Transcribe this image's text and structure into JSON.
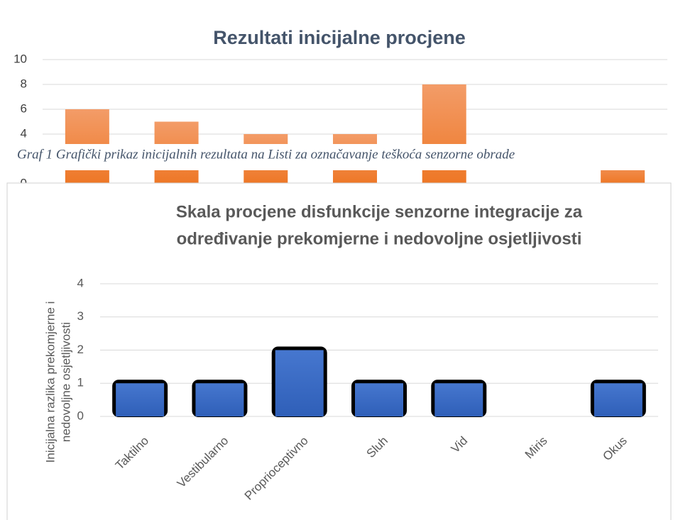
{
  "chart_data": [
    {
      "type": "bar",
      "title": "Rezultati inicijalne procjene",
      "categories": [
        null,
        null,
        null,
        null,
        null,
        null,
        null
      ],
      "values": [
        6,
        5,
        4,
        4,
        8,
        0,
        2
      ],
      "color": "#ef7d31",
      "ylim": [
        0,
        10
      ],
      "yticks": [
        0,
        2,
        4,
        6,
        8,
        10
      ],
      "grid": true
    },
    {
      "type": "bar",
      "title": [
        "Skala procjene disfunkcije senzorne integracije za",
        "određivanje prekomjerne i nedovoljne osjetljivosti"
      ],
      "ylabel": [
        "Inicijalna razlika prekomjerne i",
        "nedovoljne osjetljivosti"
      ],
      "categories": [
        "Taktilno",
        "Vestibularno",
        "Proprioceptivno",
        "Sluh",
        "Vid",
        "Miris",
        "Okus"
      ],
      "values": [
        1,
        1,
        2,
        1,
        1,
        0,
        1
      ],
      "color": "#3a6cc6",
      "ylim": [
        0,
        4
      ],
      "yticks": [
        0,
        1,
        2,
        3,
        4
      ],
      "grid": true
    }
  ],
  "caption": "Graf 1 Grafički prikaz inicijalnih rezultata na Listi za označavanje teškoća senzorne obrade"
}
